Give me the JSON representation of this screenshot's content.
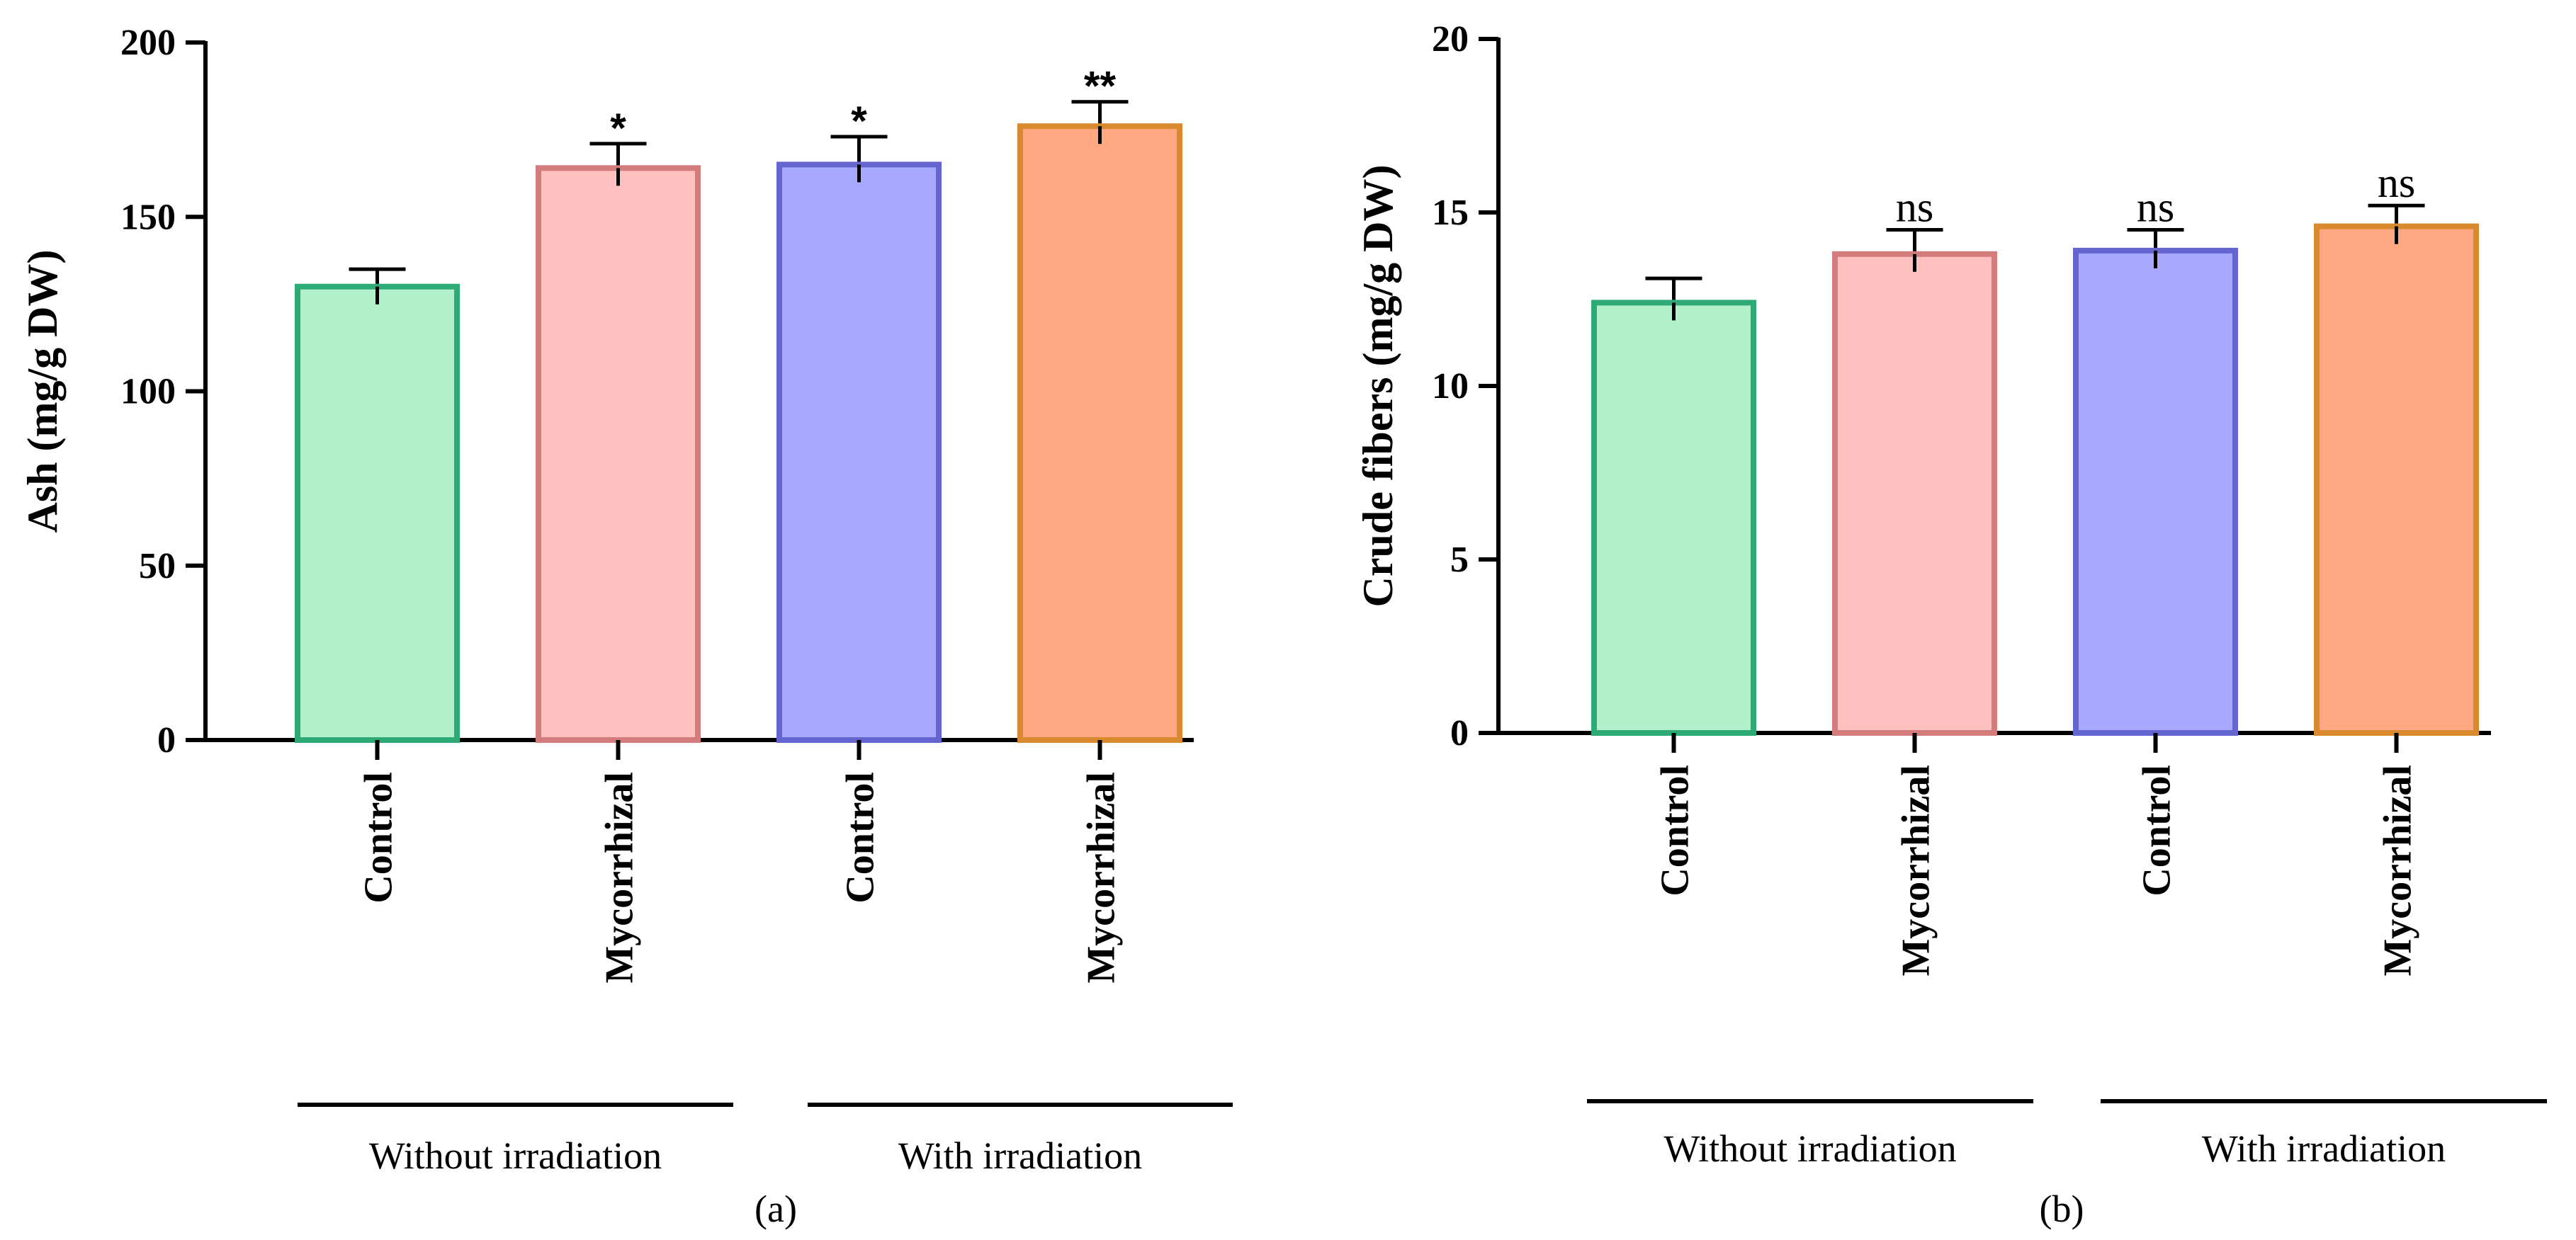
{
  "chart_data": [
    {
      "type": "bar",
      "panel_label": "(a)",
      "ylabel": "Ash (mg/g DW)",
      "ylim": [
        0,
        200
      ],
      "yticks": [
        "0",
        "50",
        "100",
        "150",
        "200"
      ],
      "categories": [
        "Control",
        "Mycorrhizal",
        "Control",
        "Mycorrhizal"
      ],
      "values": [
        130,
        164,
        165,
        176
      ],
      "errors": [
        5,
        7,
        8,
        7
      ],
      "significance": [
        "",
        "*",
        "*",
        "**"
      ],
      "groups": [
        "Without irradiation",
        "With irradiation"
      ],
      "colors": {
        "fills": [
          "#b3f0cc",
          "#ffc0c0",
          "#a8a8ff",
          "#ffa882"
        ],
        "strokes": [
          "#2eaa76",
          "#d47c7c",
          "#6565d0",
          "#d98a2e"
        ]
      }
    },
    {
      "type": "bar",
      "panel_label": "(b)",
      "ylabel": "Crude fibers  (mg/g DW)",
      "ylim": [
        0,
        20
      ],
      "yticks": [
        "0",
        "5",
        "10",
        "15",
        "20"
      ],
      "categories": [
        "Control",
        "Mycorrhizal",
        "Control",
        "Mycorrhizal"
      ],
      "values": [
        12.4,
        13.8,
        13.9,
        14.6
      ],
      "errors": [
        0.7,
        0.7,
        0.6,
        0.6
      ],
      "significance": [
        "",
        "ns",
        "ns",
        "ns"
      ],
      "groups": [
        "Without irradiation",
        "With irradiation"
      ],
      "colors": {
        "fills": [
          "#b3f0cc",
          "#ffc0c0",
          "#a8a8ff",
          "#ffa882"
        ],
        "strokes": [
          "#2eaa76",
          "#d47c7c",
          "#6565d0",
          "#d98a2e"
        ]
      }
    }
  ]
}
